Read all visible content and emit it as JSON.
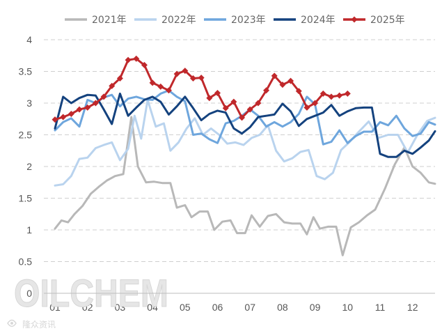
{
  "chart_data": {
    "type": "line",
    "title": "",
    "xlabel": "",
    "ylabel": "",
    "ylim": [
      0,
      4
    ],
    "yticks": [
      "0",
      "0.5",
      "1",
      "1.5",
      "2",
      "2.5",
      "3",
      "3.5",
      "4"
    ],
    "xtick_labels": [
      "01",
      "02",
      "03",
      "04",
      "05",
      "06",
      "07",
      "08",
      "09",
      "10",
      "11",
      "12"
    ],
    "x_note": "x values are month positions (1 = January, 12.7 = end of December)",
    "grid": "horizontal-dashed",
    "legend_position": "top",
    "series": [
      {
        "name": "2021年",
        "color": "#b8b8b8",
        "marker": "none",
        "points": [
          [
            1.0,
            1.02
          ],
          [
            1.2,
            1.15
          ],
          [
            1.4,
            1.12
          ],
          [
            1.6,
            1.25
          ],
          [
            1.85,
            1.38
          ],
          [
            2.1,
            1.57
          ],
          [
            2.35,
            1.68
          ],
          [
            2.6,
            1.78
          ],
          [
            2.85,
            1.85
          ],
          [
            3.1,
            1.88
          ],
          [
            3.35,
            2.78
          ],
          [
            3.55,
            2.0
          ],
          [
            3.8,
            1.75
          ],
          [
            4.05,
            1.76
          ],
          [
            4.3,
            1.74
          ],
          [
            4.55,
            1.74
          ],
          [
            4.75,
            1.35
          ],
          [
            5.0,
            1.39
          ],
          [
            5.2,
            1.2
          ],
          [
            5.45,
            1.29
          ],
          [
            5.7,
            1.29
          ],
          [
            5.9,
            1.0
          ],
          [
            6.15,
            1.13
          ],
          [
            6.4,
            1.15
          ],
          [
            6.6,
            0.95
          ],
          [
            6.85,
            0.95
          ],
          [
            7.05,
            1.23
          ],
          [
            7.3,
            1.05
          ],
          [
            7.55,
            1.22
          ],
          [
            7.8,
            1.25
          ],
          [
            8.05,
            1.12
          ],
          [
            8.3,
            1.1
          ],
          [
            8.55,
            1.1
          ],
          [
            8.75,
            0.93
          ],
          [
            8.95,
            1.2
          ],
          [
            9.15,
            1.02
          ],
          [
            9.4,
            1.05
          ],
          [
            9.65,
            1.05
          ],
          [
            9.85,
            0.6
          ],
          [
            10.1,
            1.04
          ],
          [
            10.35,
            1.12
          ],
          [
            10.6,
            1.23
          ],
          [
            10.85,
            1.32
          ],
          [
            11.15,
            1.65
          ],
          [
            11.45,
            2.03
          ],
          [
            11.75,
            2.3
          ],
          [
            12.0,
            2.0
          ],
          [
            12.25,
            1.9
          ],
          [
            12.5,
            1.75
          ],
          [
            12.75,
            1.72
          ],
          [
            12.95,
            1.65
          ],
          [
            13.15,
            1.42
          ]
        ]
      },
      {
        "name": "2022年",
        "color": "#b9d3ee",
        "marker": "none",
        "points": [
          [
            1.0,
            1.7
          ],
          [
            1.25,
            1.72
          ],
          [
            1.5,
            1.85
          ],
          [
            1.75,
            2.12
          ],
          [
            2.0,
            2.14
          ],
          [
            2.25,
            2.29
          ],
          [
            2.5,
            2.34
          ],
          [
            2.75,
            2.38
          ],
          [
            3.0,
            2.1
          ],
          [
            3.25,
            2.28
          ],
          [
            3.45,
            2.8
          ],
          [
            3.65,
            2.44
          ],
          [
            3.85,
            3.05
          ],
          [
            4.1,
            2.63
          ],
          [
            4.35,
            2.68
          ],
          [
            4.55,
            2.25
          ],
          [
            4.8,
            2.38
          ],
          [
            5.05,
            2.6
          ],
          [
            5.3,
            2.76
          ],
          [
            5.55,
            2.5
          ],
          [
            5.8,
            2.6
          ],
          [
            6.05,
            2.5
          ],
          [
            6.3,
            2.36
          ],
          [
            6.55,
            2.38
          ],
          [
            6.8,
            2.34
          ],
          [
            7.05,
            2.45
          ],
          [
            7.3,
            2.5
          ],
          [
            7.55,
            2.65
          ],
          [
            7.8,
            2.25
          ],
          [
            8.05,
            2.08
          ],
          [
            8.3,
            2.13
          ],
          [
            8.55,
            2.23
          ],
          [
            8.8,
            2.26
          ],
          [
            9.05,
            1.85
          ],
          [
            9.3,
            1.8
          ],
          [
            9.55,
            1.9
          ],
          [
            9.8,
            2.26
          ],
          [
            10.05,
            2.38
          ],
          [
            10.35,
            2.55
          ],
          [
            10.65,
            2.71
          ],
          [
            10.95,
            2.45
          ],
          [
            11.25,
            2.5
          ],
          [
            11.55,
            2.5
          ],
          [
            11.85,
            2.22
          ],
          [
            12.15,
            2.5
          ],
          [
            12.45,
            2.72
          ],
          [
            12.75,
            2.78
          ],
          [
            13.05,
            2.8
          ]
        ]
      },
      {
        "name": "2023年",
        "color": "#6ea6dd",
        "marker": "none",
        "points": [
          [
            1.0,
            2.57
          ],
          [
            1.25,
            2.7
          ],
          [
            1.5,
            2.76
          ],
          [
            1.75,
            2.63
          ],
          [
            2.0,
            3.05
          ],
          [
            2.25,
            3.0
          ],
          [
            2.5,
            3.09
          ],
          [
            2.75,
            3.13
          ],
          [
            3.0,
            2.95
          ],
          [
            3.25,
            3.07
          ],
          [
            3.5,
            3.1
          ],
          [
            3.75,
            3.06
          ],
          [
            4.0,
            3.05
          ],
          [
            4.25,
            3.15
          ],
          [
            4.5,
            3.2
          ],
          [
            4.75,
            3.1
          ],
          [
            5.0,
            3.03
          ],
          [
            5.25,
            2.5
          ],
          [
            5.5,
            2.52
          ],
          [
            5.75,
            2.43
          ],
          [
            6.0,
            2.37
          ],
          [
            6.25,
            2.68
          ],
          [
            6.5,
            2.72
          ],
          [
            6.75,
            2.8
          ],
          [
            7.0,
            2.9
          ],
          [
            7.25,
            2.8
          ],
          [
            7.5,
            2.63
          ],
          [
            7.75,
            2.7
          ],
          [
            8.0,
            2.63
          ],
          [
            8.25,
            2.7
          ],
          [
            8.5,
            2.83
          ],
          [
            8.75,
            3.1
          ],
          [
            9.0,
            2.98
          ],
          [
            9.25,
            2.35
          ],
          [
            9.5,
            2.39
          ],
          [
            9.75,
            2.57
          ],
          [
            10.0,
            2.37
          ],
          [
            10.25,
            2.48
          ],
          [
            10.5,
            2.55
          ],
          [
            10.75,
            2.55
          ],
          [
            11.0,
            2.7
          ],
          [
            11.25,
            2.65
          ],
          [
            11.5,
            2.8
          ],
          [
            11.75,
            2.6
          ],
          [
            12.0,
            2.48
          ],
          [
            12.25,
            2.52
          ],
          [
            12.5,
            2.7
          ],
          [
            12.75,
            2.65
          ],
          [
            13.0,
            2.7
          ]
        ]
      },
      {
        "name": "2024年",
        "color": "#14427e",
        "marker": "none",
        "points": [
          [
            1.0,
            2.6
          ],
          [
            1.25,
            3.1
          ],
          [
            1.5,
            3.0
          ],
          [
            1.75,
            3.08
          ],
          [
            2.0,
            3.13
          ],
          [
            2.25,
            3.12
          ],
          [
            2.5,
            2.9
          ],
          [
            2.75,
            2.67
          ],
          [
            3.0,
            3.15
          ],
          [
            3.25,
            2.8
          ],
          [
            3.5,
            2.93
          ],
          [
            3.75,
            3.05
          ],
          [
            4.0,
            3.1
          ],
          [
            4.25,
            3.02
          ],
          [
            4.5,
            2.82
          ],
          [
            4.75,
            2.95
          ],
          [
            5.0,
            3.1
          ],
          [
            5.25,
            2.92
          ],
          [
            5.5,
            2.73
          ],
          [
            5.75,
            2.83
          ],
          [
            6.0,
            2.88
          ],
          [
            6.25,
            2.85
          ],
          [
            6.5,
            2.6
          ],
          [
            6.75,
            2.52
          ],
          [
            7.0,
            2.62
          ],
          [
            7.25,
            2.78
          ],
          [
            7.5,
            2.8
          ],
          [
            7.75,
            2.82
          ],
          [
            8.0,
            2.99
          ],
          [
            8.25,
            2.87
          ],
          [
            8.5,
            2.64
          ],
          [
            8.75,
            2.75
          ],
          [
            9.0,
            2.8
          ],
          [
            9.25,
            2.85
          ],
          [
            9.5,
            2.97
          ],
          [
            9.75,
            2.8
          ],
          [
            10.0,
            2.87
          ],
          [
            10.25,
            2.92
          ],
          [
            10.5,
            2.93
          ],
          [
            10.75,
            2.93
          ],
          [
            11.0,
            2.2
          ],
          [
            11.25,
            2.15
          ],
          [
            11.5,
            2.15
          ],
          [
            11.75,
            2.25
          ],
          [
            12.0,
            2.2
          ],
          [
            12.25,
            2.3
          ],
          [
            12.5,
            2.41
          ],
          [
            12.75,
            2.6
          ],
          [
            13.0,
            2.75
          ],
          [
            13.25,
            2.92
          ],
          [
            13.5,
            2.97
          ],
          [
            13.75,
            2.85
          ],
          [
            14.0,
            2.75
          ]
        ]
      },
      {
        "name": "2025年",
        "color": "#c0282b",
        "marker": "diamond",
        "points": [
          [
            1.0,
            2.74
          ],
          [
            1.25,
            2.78
          ],
          [
            1.5,
            2.83
          ],
          [
            1.75,
            2.9
          ],
          [
            2.0,
            2.93
          ],
          [
            2.25,
            3.0
          ],
          [
            2.5,
            3.1
          ],
          [
            2.75,
            3.27
          ],
          [
            3.0,
            3.39
          ],
          [
            3.25,
            3.68
          ],
          [
            3.5,
            3.7
          ],
          [
            3.75,
            3.6
          ],
          [
            4.0,
            3.32
          ],
          [
            4.25,
            3.26
          ],
          [
            4.5,
            3.2
          ],
          [
            4.75,
            3.46
          ],
          [
            5.0,
            3.51
          ],
          [
            5.25,
            3.39
          ],
          [
            5.5,
            3.4
          ],
          [
            5.75,
            3.08
          ],
          [
            6.0,
            3.16
          ],
          [
            6.25,
            2.92
          ],
          [
            6.5,
            3.02
          ],
          [
            6.75,
            2.77
          ],
          [
            7.0,
            2.9
          ],
          [
            7.25,
            3.0
          ],
          [
            7.5,
            3.2
          ],
          [
            7.75,
            3.43
          ],
          [
            8.0,
            3.29
          ],
          [
            8.25,
            3.35
          ],
          [
            8.5,
            3.19
          ],
          [
            8.75,
            2.93
          ],
          [
            9.0,
            3.0
          ],
          [
            9.25,
            3.15
          ],
          [
            9.5,
            3.1
          ],
          [
            9.75,
            3.12
          ],
          [
            10.0,
            3.15
          ]
        ]
      }
    ]
  },
  "watermark": {
    "text": "OILCHEM",
    "sub_text": "隆众资讯"
  }
}
